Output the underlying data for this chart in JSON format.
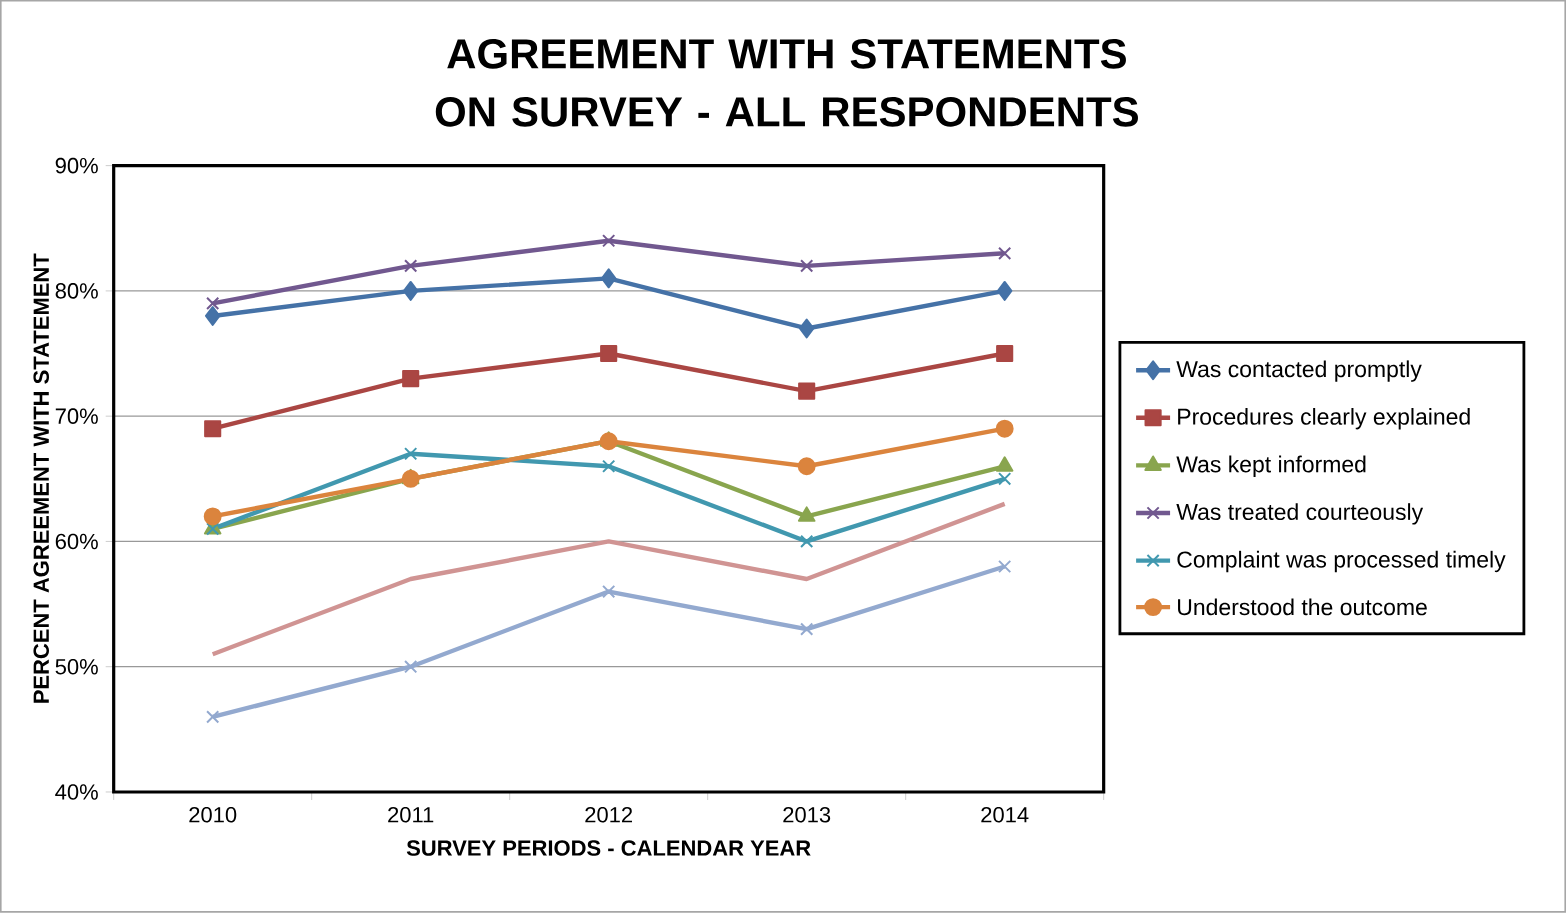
{
  "chart_data": {
    "type": "line",
    "title": "AGREEMENT WITH STATEMENTS ON SURVEY - ALL RESPONDENTS",
    "xlabel": "SURVEY PERIODS - CALENDAR YEAR",
    "ylabel": "PERCENT AGREEMENT WITH STATEMENT",
    "categories": [
      "2010",
      "2011",
      "2012",
      "2013",
      "2014"
    ],
    "ylim": [
      40,
      90
    ],
    "yticks": [
      {
        "value": 40,
        "label": "40%"
      },
      {
        "value": 50,
        "label": "50%"
      },
      {
        "value": 60,
        "label": "60%"
      },
      {
        "value": 70,
        "label": "70%"
      },
      {
        "value": 80,
        "label": "80%"
      },
      {
        "value": 90,
        "label": "90%"
      }
    ],
    "grid": "y",
    "legend": "right",
    "series": [
      {
        "name": "Was contacted promptly",
        "color": "#4572a7",
        "marker": "diamond",
        "values": [
          78,
          80,
          81,
          77,
          80
        ]
      },
      {
        "name": "Procedures clearly explained",
        "color": "#aa4643",
        "marker": "square",
        "values": [
          69,
          73,
          75,
          72,
          75
        ]
      },
      {
        "name": "Was kept informed",
        "color": "#89a54e",
        "marker": "triangle",
        "values": [
          61,
          65,
          68,
          62,
          66
        ]
      },
      {
        "name": "Was treated courteously",
        "color": "#71588f",
        "marker": "cross",
        "values": [
          79,
          82,
          84,
          82,
          83
        ]
      },
      {
        "name": "Complaint was processed timely",
        "color": "#4198af",
        "marker": "cross",
        "values": [
          61,
          67,
          66,
          60,
          65
        ]
      },
      {
        "name": "Understood the outcome",
        "color": "#db843d",
        "marker": "circle",
        "values": [
          62,
          65,
          68,
          66,
          69
        ]
      },
      {
        "color": "#d09493",
        "marker": "none",
        "values": [
          51,
          57,
          60,
          57,
          63
        ]
      },
      {
        "color": "#93a9cf",
        "marker": "cross",
        "values": [
          46,
          50,
          56,
          53,
          58
        ]
      }
    ]
  }
}
